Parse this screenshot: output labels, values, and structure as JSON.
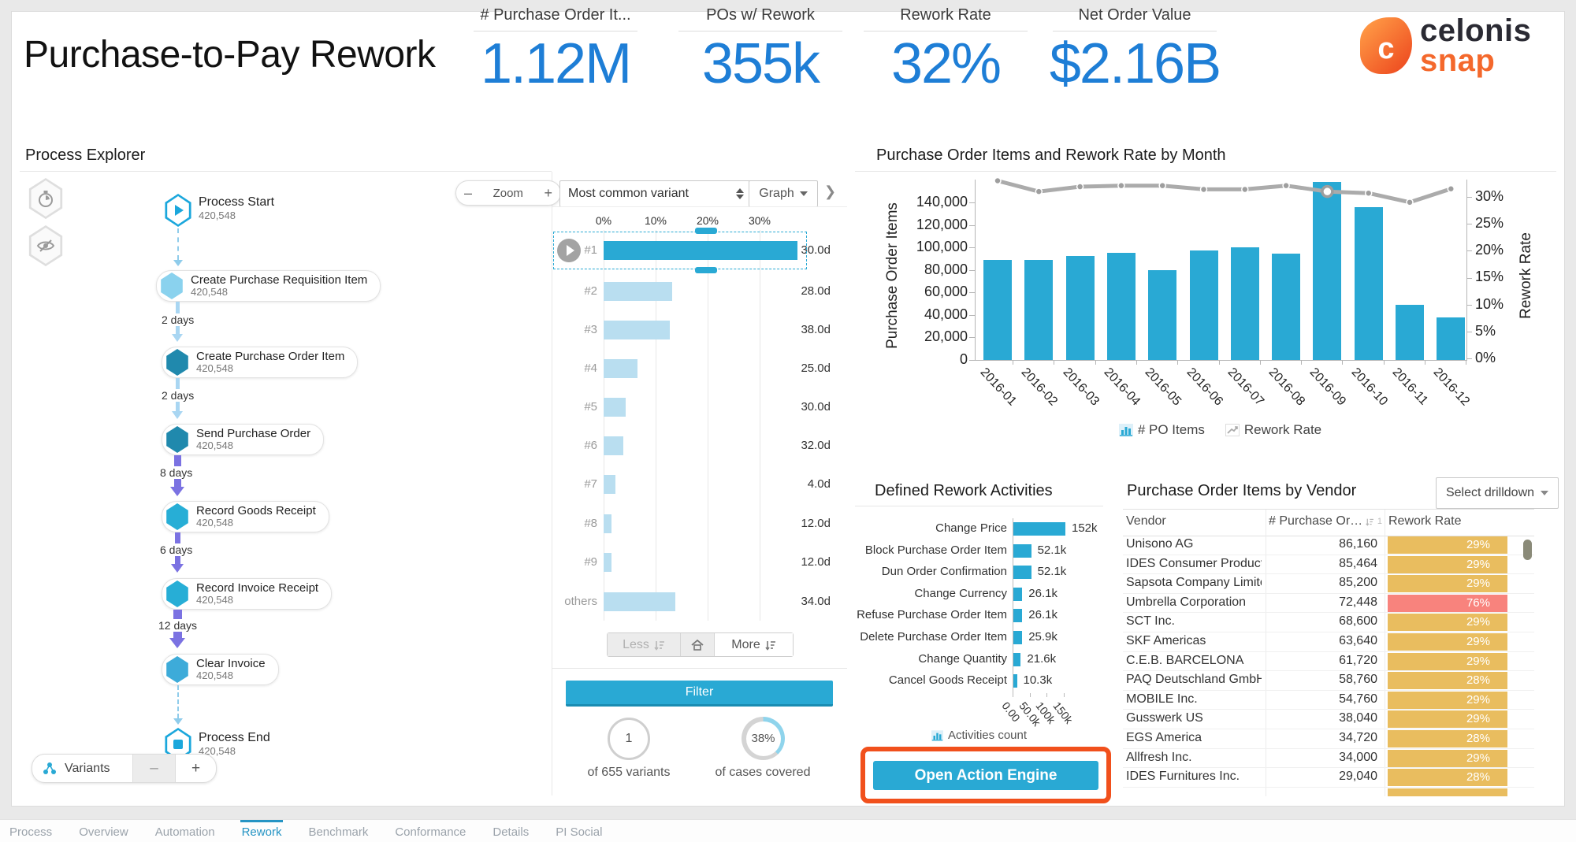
{
  "header": {
    "title": "Purchase-to-Pay Rework",
    "kpis": [
      {
        "label": "# Purchase Order It...",
        "value": "1.12M"
      },
      {
        "label": "POs w/ Rework",
        "value": "355k"
      },
      {
        "label": "Rework Rate",
        "value": "32%"
      },
      {
        "label": "Net Order Value",
        "value": "$2.16B"
      }
    ],
    "logo": {
      "brand": "celonis",
      "product": "snap",
      "monogram": "c"
    }
  },
  "process_explorer": {
    "title": "Process Explorer",
    "zoom_label": "Zoom",
    "variants_control_label": "Variants",
    "nodes": [
      {
        "name": "Process Start",
        "count": "420,548"
      },
      {
        "name": "Create Purchase Requisition Item",
        "count": "420,548"
      },
      {
        "name": "Create Purchase Order Item",
        "count": "420,548"
      },
      {
        "name": "Send Purchase Order",
        "count": "420,548"
      },
      {
        "name": "Record Goods Receipt",
        "count": "420,548"
      },
      {
        "name": "Record Invoice Receipt",
        "count": "420,548"
      },
      {
        "name": "Clear Invoice",
        "count": "420,548"
      },
      {
        "name": "Process End",
        "count": "420,548"
      }
    ],
    "edge_durations": [
      "2 days",
      "2 days",
      "8 days",
      "6 days",
      "12 days"
    ]
  },
  "variant_panel": {
    "variant_selector": "Most common variant",
    "graph_button": "Graph",
    "less_button": "Less",
    "more_button": "More",
    "filter_button": "Filter",
    "variants_gauge": {
      "value": "1",
      "caption": "of 655 variants"
    },
    "coverage_gauge": {
      "value": "38%",
      "caption": "of cases covered"
    }
  },
  "action_panel": {
    "legend": "Activities count",
    "button": "Open Action Engine"
  },
  "vendor_panel": {
    "drilldown_button": "Select drilldown",
    "sort_priority": "1"
  },
  "footer_tabs": [
    {
      "label": "Process",
      "active": false
    },
    {
      "label": "Overview",
      "active": false
    },
    {
      "label": "Automation",
      "active": false
    },
    {
      "label": "Rework",
      "active": true
    },
    {
      "label": "Benchmark",
      "active": false
    },
    {
      "label": "Conformance",
      "active": false
    },
    {
      "label": "Details",
      "active": false
    },
    {
      "label": "PI Social",
      "active": false
    }
  ],
  "colors": {
    "accent_cyan": "#29a9d4",
    "bar_light": "#b9def0",
    "kpi_blue": "#1e7ed6",
    "warn_yellow": "#e9bd5f",
    "alert_red": "#f8837d",
    "highlight_orange": "#f1501c",
    "line_gray": "#ababab",
    "purple_edge": "#7b72e2",
    "lightblue_edge": "#a9d6f2"
  },
  "chart_data": [
    {
      "id": "po_items_and_rework_by_month",
      "type": "bar+line",
      "title": "Purchase Order Items and Rework Rate by Month",
      "categories": [
        "2016-01",
        "2016-02",
        "2016-03",
        "2016-04",
        "2016-05",
        "2016-06",
        "2016-07",
        "2016-08",
        "2016-09",
        "2016-10",
        "2016-11",
        "2016-12"
      ],
      "series": [
        {
          "name": "# PO Items",
          "type": "bar",
          "values": [
            89000,
            89000,
            92500,
            95500,
            79500,
            97500,
            100000,
            94500,
            158000,
            136000,
            49000,
            38000
          ]
        },
        {
          "name": "Rework Rate",
          "type": "line",
          "values": [
            33.0,
            31.0,
            31.9,
            32.1,
            32.1,
            31.4,
            31.4,
            32.1,
            31.0,
            30.7,
            29.0,
            31.5
          ],
          "highlight_index": 8
        }
      ],
      "ylabel_left": "Purchase Order Items",
      "ylabel_right": "Rework Rate",
      "yticks_left": [
        "0",
        "20,000",
        "40,000",
        "60,000",
        "80,000",
        "100,000",
        "120,000",
        "140,000"
      ],
      "yticks_right": [
        "0%",
        "5%",
        "10%",
        "15%",
        "20%",
        "25%",
        "30%"
      ],
      "ylim_left": [
        0,
        160000
      ],
      "ylim_right": [
        0,
        33.5
      ],
      "legend_position": "bottom"
    },
    {
      "id": "variant_explorer",
      "type": "bar",
      "orientation": "horizontal",
      "categories": [
        "#1",
        "#2",
        "#3",
        "#4",
        "#5",
        "#6",
        "#7",
        "#8",
        "#9",
        "others"
      ],
      "values_pct": [
        37.3,
        13.1,
        12.7,
        6.5,
        4.3,
        3.8,
        2.2,
        1.5,
        1.5,
        13.8
      ],
      "durations": [
        "30.0d",
        "28.0d",
        "38.0d",
        "25.0d",
        "30.0d",
        "32.0d",
        "4.0d",
        "12.0d",
        "12.0d",
        "34.0d"
      ],
      "xticks": [
        "0%",
        "10%",
        "20%",
        "30%"
      ],
      "xlim": [
        0,
        40
      ],
      "selected": "#1"
    },
    {
      "id": "defined_rework_activities",
      "type": "bar",
      "orientation": "horizontal",
      "title": "Defined Rework Activities",
      "categories": [
        "Change Price",
        "Block Purchase Order Item",
        "Dun Order Confirmation",
        "Change Currency",
        "Refuse Purchase Order Item",
        "Delete Purchase Order Item",
        "Change Quantity",
        "Cancel Goods Receipt"
      ],
      "values": [
        152000,
        52100,
        52100,
        26100,
        26100,
        25900,
        21600,
        10300
      ],
      "value_labels": [
        "152k",
        "52.1k",
        "52.1k",
        "26.1k",
        "26.1k",
        "25.9k",
        "21.6k",
        "10.3k"
      ],
      "xticks": [
        "0.00",
        "50.0k",
        "100k",
        "150k"
      ],
      "xlim": [
        0,
        150000
      ],
      "legend": "Activities count"
    },
    {
      "id": "po_items_by_vendor",
      "type": "table",
      "title": "Purchase Order Items by Vendor",
      "columns": [
        "Vendor",
        "# Purchase Or…",
        "Rework Rate"
      ],
      "sort": {
        "column": "# Purchase Or…",
        "order": "desc",
        "priority": "1"
      },
      "rows": [
        {
          "vendor": "Unisono AG",
          "value": "86,160",
          "rate": "29%",
          "alert": false
        },
        {
          "vendor": "IDES Consumer Products",
          "value": "85,464",
          "rate": "29%",
          "alert": false
        },
        {
          "vendor": "Sapsota Company Limited",
          "value": "85,200",
          "rate": "29%",
          "alert": false
        },
        {
          "vendor": "Umbrella Corporation",
          "value": "72,448",
          "rate": "76%",
          "alert": true
        },
        {
          "vendor": "SCT Inc.",
          "value": "68,600",
          "rate": "29%",
          "alert": false
        },
        {
          "vendor": "SKF Americas",
          "value": "63,640",
          "rate": "29%",
          "alert": false
        },
        {
          "vendor": "C.E.B. BARCELONA",
          "value": "61,720",
          "rate": "29%",
          "alert": false
        },
        {
          "vendor": "PAQ Deutschland GmbH",
          "value": "58,760",
          "rate": "28%",
          "alert": false
        },
        {
          "vendor": "MOBILE Inc.",
          "value": "54,760",
          "rate": "29%",
          "alert": false
        },
        {
          "vendor": "Gusswerk US",
          "value": "38,040",
          "rate": "29%",
          "alert": false
        },
        {
          "vendor": "EGS America",
          "value": "34,720",
          "rate": "28%",
          "alert": false
        },
        {
          "vendor": "Allfresh Inc.",
          "value": "34,000",
          "rate": "29%",
          "alert": false
        },
        {
          "vendor": "IDES Furnitures Inc.",
          "value": "29,040",
          "rate": "28%",
          "alert": false
        }
      ]
    }
  ]
}
